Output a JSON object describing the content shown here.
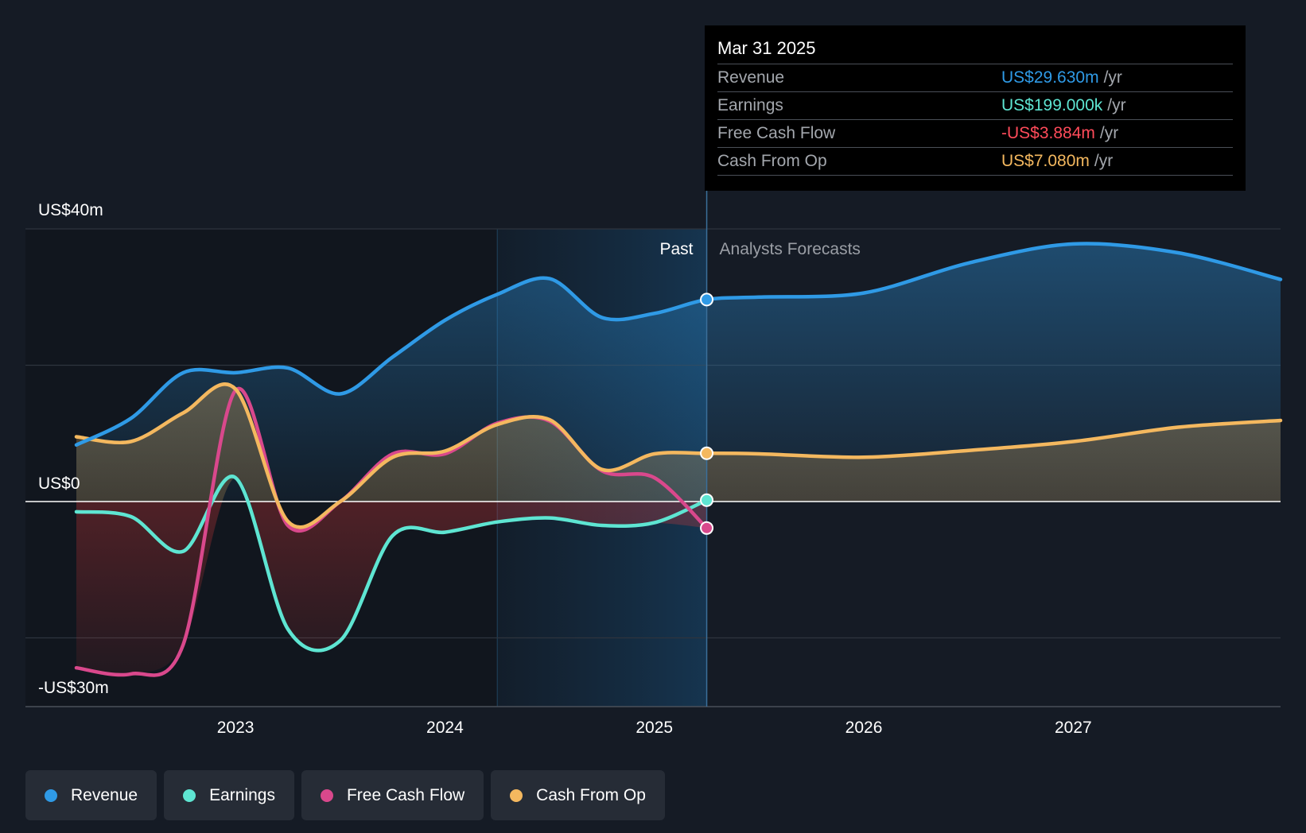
{
  "tooltip": {
    "date": "Mar 31 2025",
    "rows": [
      {
        "label": "Revenue",
        "value": "US$29.630m",
        "unit": "/yr",
        "color": "#2f9ae6"
      },
      {
        "label": "Earnings",
        "value": "US$199.000k",
        "unit": "/yr",
        "color": "#5ee5d2"
      },
      {
        "label": "Free Cash Flow",
        "value": "-US$3.884m",
        "unit": "/yr",
        "color": "#ff4b5a"
      },
      {
        "label": "Cash From Op",
        "value": "US$7.080m",
        "unit": "/yr",
        "color": "#f4b85f"
      }
    ]
  },
  "legend": [
    {
      "label": "Revenue",
      "color": "#2f9ae6"
    },
    {
      "label": "Earnings",
      "color": "#5ee5d2"
    },
    {
      "label": "Free Cash Flow",
      "color": "#d9488c"
    },
    {
      "label": "Cash From Op",
      "color": "#f4b85f"
    }
  ],
  "chart_data": {
    "type": "line",
    "y_axis_labels": [
      "US$40m",
      "US$0",
      "-US$30m"
    ],
    "ylim": [
      -30,
      40
    ],
    "xlim": [
      2022.24,
      2027.99
    ],
    "x_ticks": [
      2023,
      2024,
      2025,
      2026,
      2027
    ],
    "x_tick_labels": [
      "2023",
      "2024",
      "2025",
      "2026",
      "2027"
    ],
    "grid": "horizontal",
    "section_labels": {
      "past": "Past",
      "forecast": "Analysts Forecasts"
    },
    "divider_x": 2025.25,
    "highlight_start_x": 2024.25,
    "series": [
      {
        "name": "Revenue",
        "color": "#2f9ae6",
        "points": [
          [
            2022.24,
            8.3
          ],
          [
            2022.5,
            12.2
          ],
          [
            2022.75,
            18.9
          ],
          [
            2023.0,
            18.9
          ],
          [
            2023.25,
            19.6
          ],
          [
            2023.5,
            15.8
          ],
          [
            2023.75,
            21.2
          ],
          [
            2024.0,
            26.6
          ],
          [
            2024.25,
            30.4
          ],
          [
            2024.5,
            32.7
          ],
          [
            2024.75,
            27.0
          ],
          [
            2025.0,
            27.6
          ],
          [
            2025.25,
            29.63
          ],
          [
            2025.5,
            30.0
          ],
          [
            2026.0,
            30.6
          ],
          [
            2026.5,
            35.0
          ],
          [
            2027.0,
            37.8
          ],
          [
            2027.5,
            36.5
          ],
          [
            2027.99,
            32.6
          ]
        ]
      },
      {
        "name": "Earnings",
        "color": "#5ee5d2",
        "points": [
          [
            2022.24,
            -1.5
          ],
          [
            2022.5,
            -2.2
          ],
          [
            2022.75,
            -7.3
          ],
          [
            2023.0,
            3.5
          ],
          [
            2023.25,
            -18.7
          ],
          [
            2023.5,
            -20.4
          ],
          [
            2023.75,
            -5.0
          ],
          [
            2024.0,
            -4.5
          ],
          [
            2024.25,
            -3.0
          ],
          [
            2024.5,
            -2.4
          ],
          [
            2024.75,
            -3.5
          ],
          [
            2025.0,
            -3.1
          ],
          [
            2025.25,
            0.199
          ]
        ]
      },
      {
        "name": "Free Cash Flow",
        "color": "#d9488c",
        "points": [
          [
            2022.24,
            -24.4
          ],
          [
            2022.5,
            -25.3
          ],
          [
            2022.75,
            -21.0
          ],
          [
            2023.0,
            16.3
          ],
          [
            2023.25,
            -3.5
          ],
          [
            2023.5,
            0.0
          ],
          [
            2023.75,
            7.0
          ],
          [
            2024.0,
            7.0
          ],
          [
            2024.25,
            11.5
          ],
          [
            2024.5,
            11.8
          ],
          [
            2024.75,
            4.5
          ],
          [
            2025.0,
            3.5
          ],
          [
            2025.25,
            -3.884
          ]
        ]
      },
      {
        "name": "Cash From Op",
        "color": "#f4b85f",
        "points": [
          [
            2022.24,
            9.5
          ],
          [
            2022.5,
            8.8
          ],
          [
            2022.75,
            13.0
          ],
          [
            2023.0,
            16.5
          ],
          [
            2023.25,
            -2.9
          ],
          [
            2023.5,
            0.0
          ],
          [
            2023.75,
            6.5
          ],
          [
            2024.0,
            7.4
          ],
          [
            2024.25,
            11.3
          ],
          [
            2024.5,
            12.0
          ],
          [
            2024.75,
            4.7
          ],
          [
            2025.0,
            7.0
          ],
          [
            2025.25,
            7.08
          ],
          [
            2025.5,
            7.0
          ],
          [
            2026.0,
            6.5
          ],
          [
            2026.5,
            7.5
          ],
          [
            2027.0,
            8.8
          ],
          [
            2027.5,
            10.9
          ],
          [
            2027.99,
            11.9
          ]
        ]
      }
    ]
  }
}
